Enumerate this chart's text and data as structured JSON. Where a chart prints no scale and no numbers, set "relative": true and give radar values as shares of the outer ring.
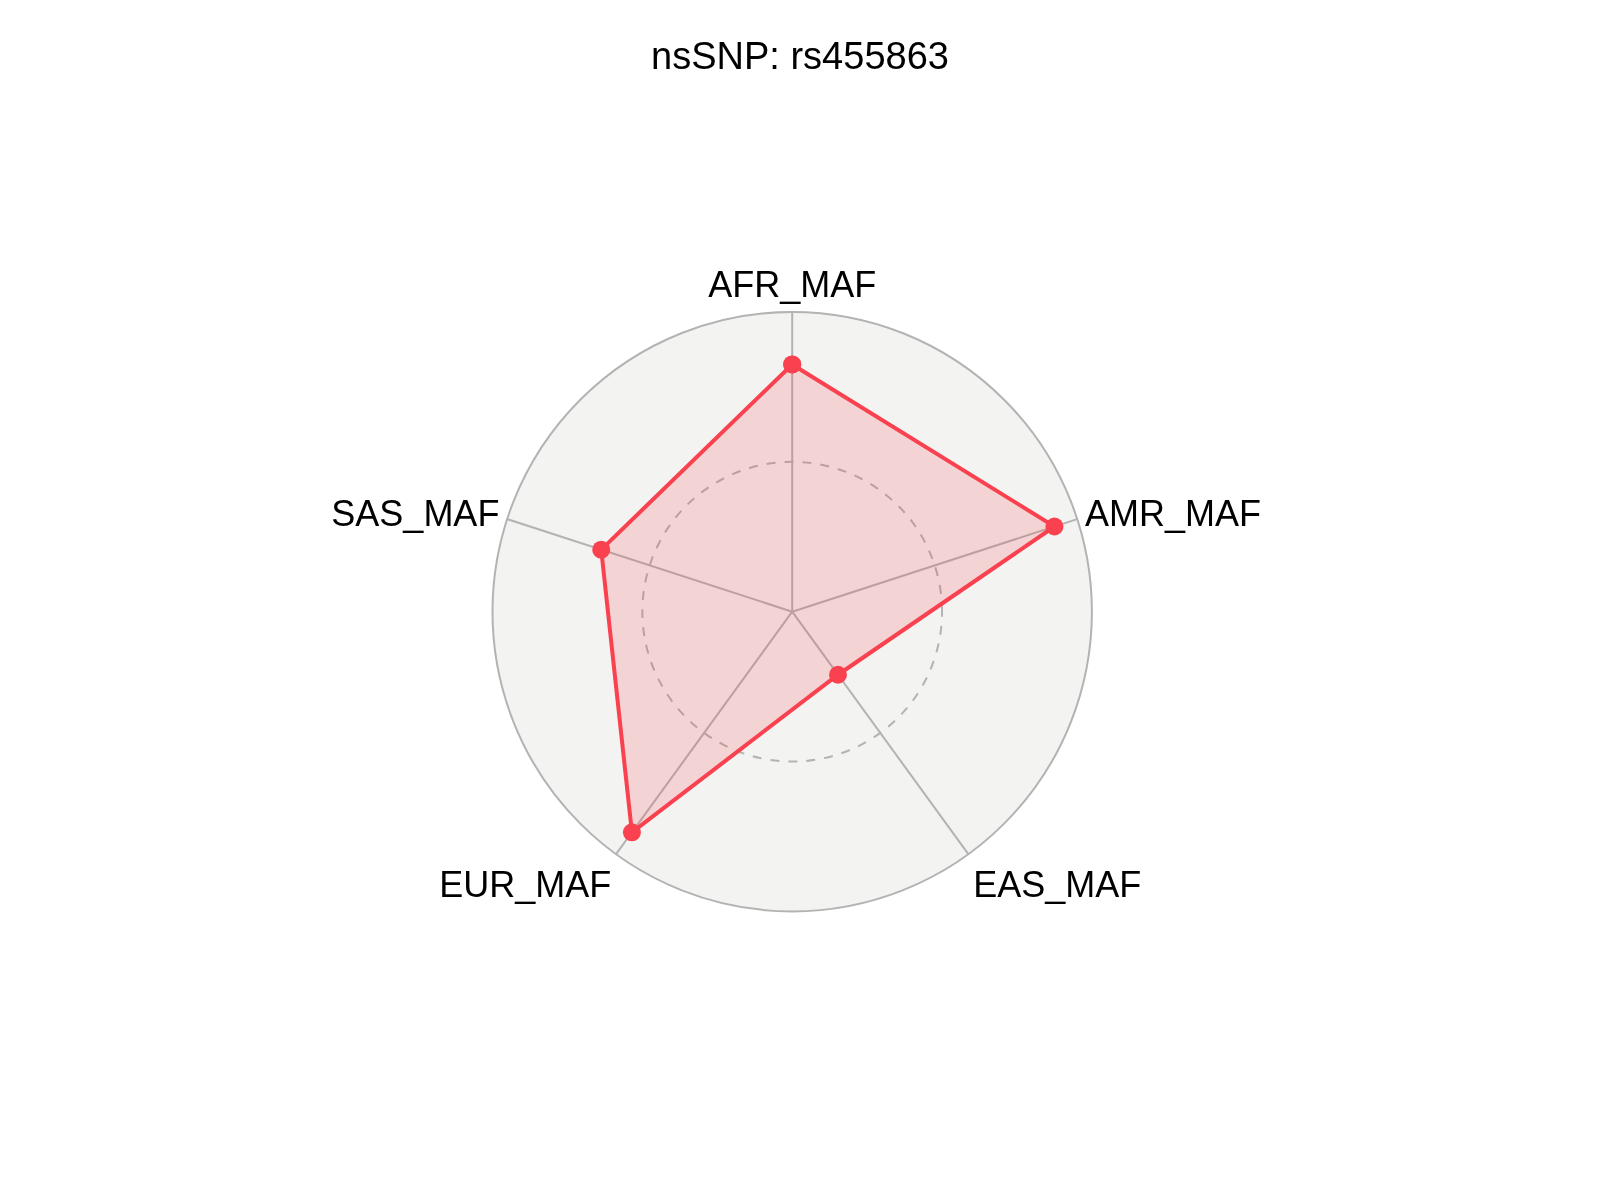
{
  "chart_data": {
    "type": "radar",
    "title": "nsSNP: rs455863",
    "relative": true,
    "categories": [
      "AFR_MAF",
      "AMR_MAF",
      "EAS_MAF",
      "EUR_MAF",
      "SAS_MAF"
    ],
    "series": [
      {
        "color": "#f9414f",
        "values": [
          0.825,
          0.92,
          0.26,
          0.91,
          0.67
        ]
      }
    ],
    "grid": true,
    "marker": "circle",
    "line_style": "solid"
  }
}
